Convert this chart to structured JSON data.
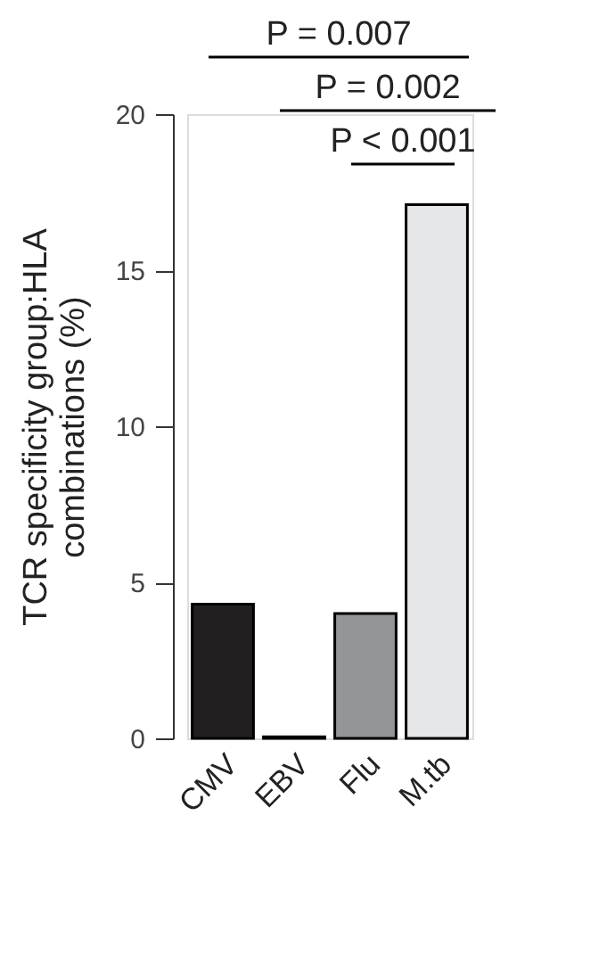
{
  "chart_data": {
    "type": "bar",
    "ylabel": "TCR specificity group:HLA\ncombinations (%)",
    "categories": [
      "CMV",
      "EBV",
      "Flu",
      "M.tb"
    ],
    "values": [
      4.3,
      0.05,
      4.0,
      17.1
    ],
    "colors": [
      "#231f20",
      "#231f20",
      "#939598",
      "#e6e7e8"
    ],
    "ylim": [
      0,
      20
    ],
    "yticks": [
      0,
      5,
      10,
      15,
      20
    ],
    "grid": false,
    "legend": false,
    "annotations": [
      "P = 0.007",
      "P = 0.002",
      "P < 0.001"
    ]
  }
}
